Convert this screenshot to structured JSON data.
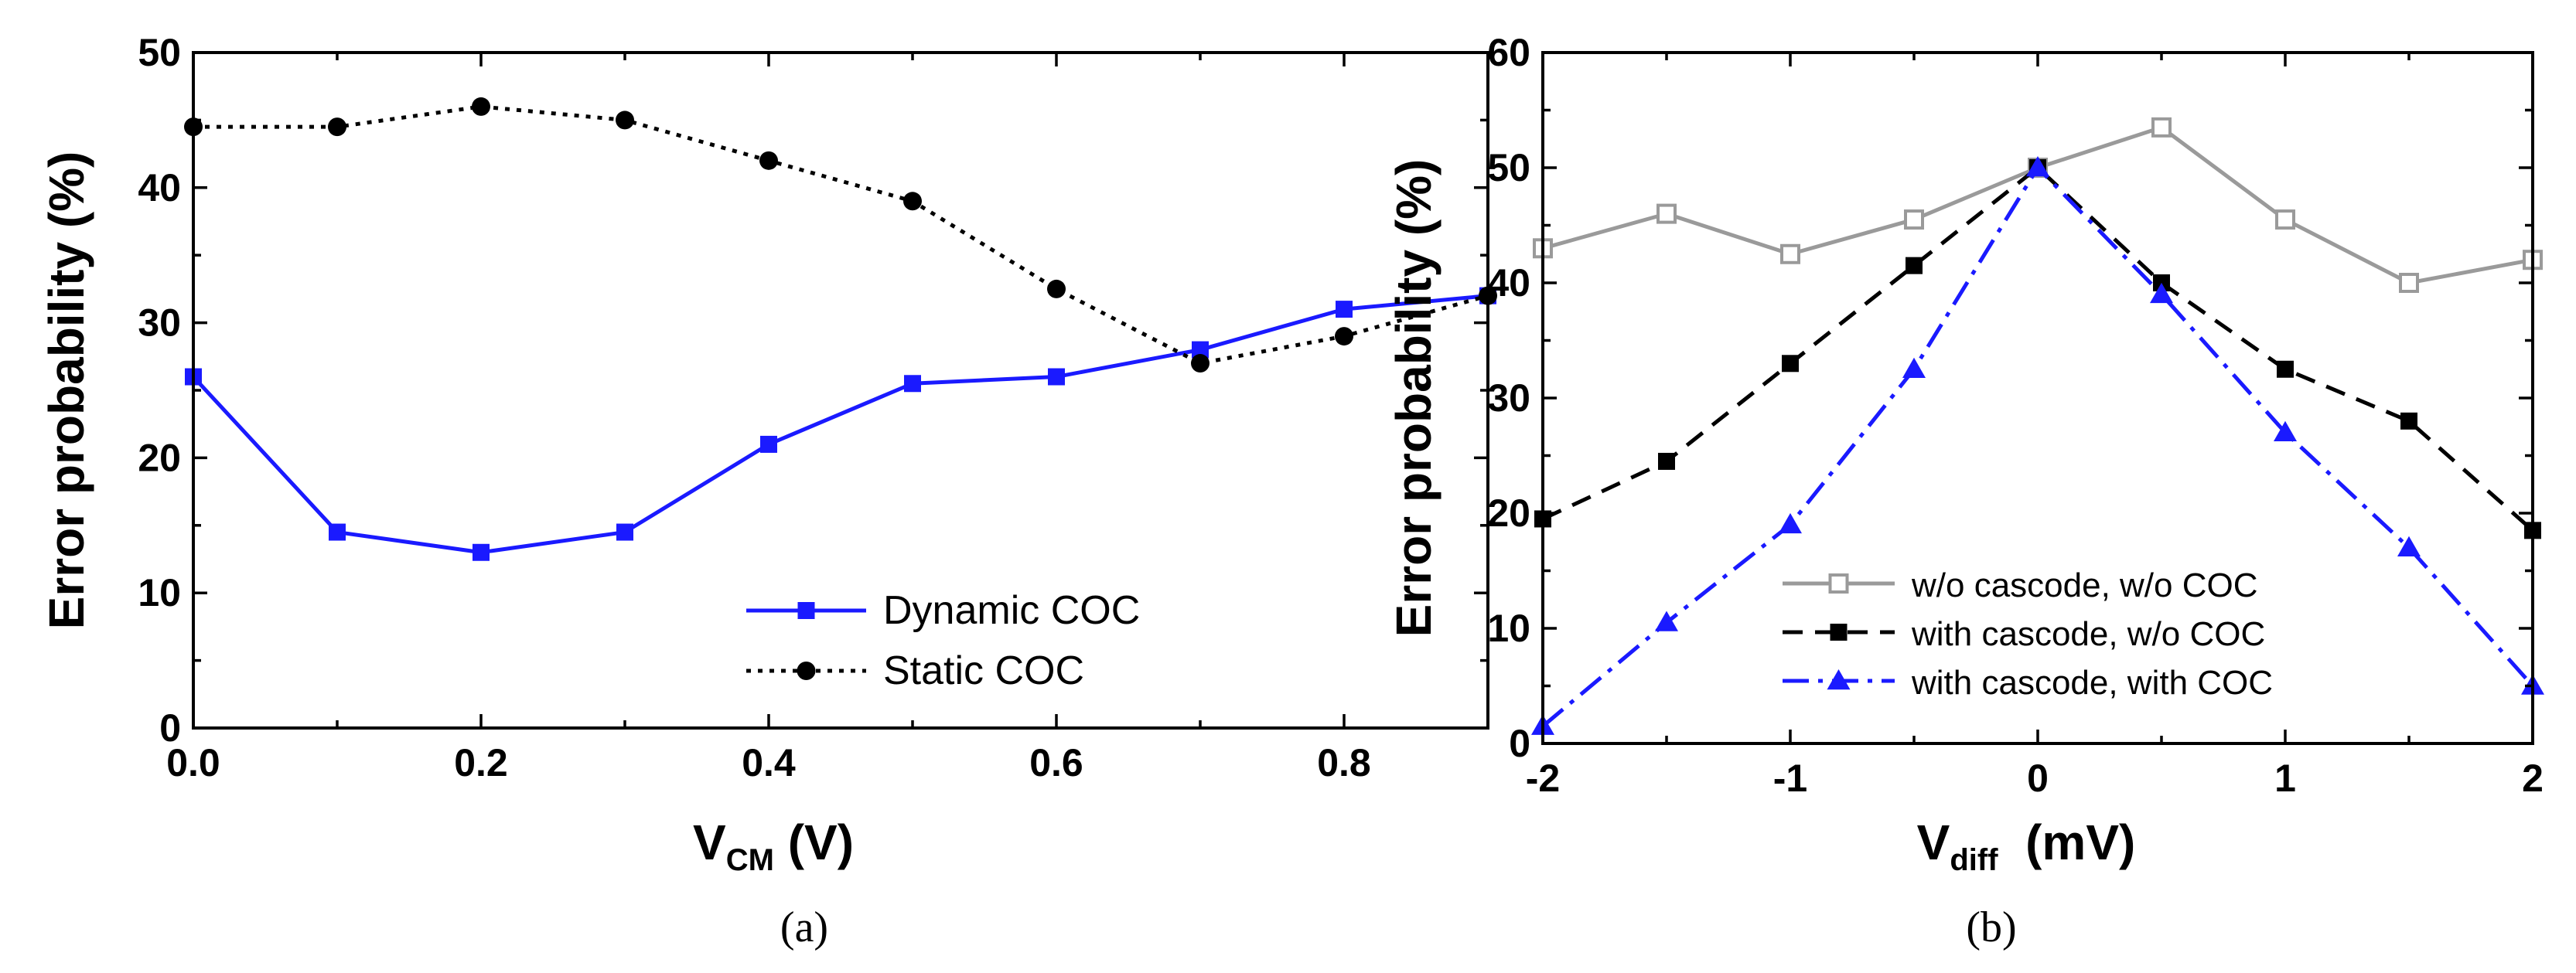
{
  "chart_data": [
    {
      "type": "line",
      "caption": "(a)",
      "xlabel_main": "V",
      "xlabel_sub": "CM",
      "xlabel_unit": " (V)",
      "ylabel": "Error probability (%)",
      "xlim": [
        0,
        0.9
      ],
      "ylim": [
        0,
        50
      ],
      "xticks": [
        0.0,
        0.2,
        0.4,
        0.6,
        0.8
      ],
      "xtick_labels": [
        "0.0",
        "0.2",
        "0.4",
        "0.6",
        "0.8"
      ],
      "yticks": [
        0,
        10,
        20,
        30,
        40,
        50
      ],
      "ytick_labels": [
        "0",
        "10",
        "20",
        "30",
        "40",
        "50"
      ],
      "legend_position": "lower-right",
      "series": [
        {
          "name": "Dynamic COC",
          "color": "#1a1aff",
          "dash": "solid",
          "marker": "square-filled",
          "x": [
            0.0,
            0.1,
            0.2,
            0.3,
            0.4,
            0.5,
            0.6,
            0.7,
            0.8,
            0.9
          ],
          "values": [
            26,
            14.5,
            13,
            14.5,
            21,
            25.5,
            26,
            28,
            31,
            32
          ]
        },
        {
          "name": "Static COC",
          "color": "#000000",
          "dash": "dotted",
          "marker": "circle-filled",
          "x": [
            0.0,
            0.1,
            0.2,
            0.3,
            0.4,
            0.5,
            0.6,
            0.7,
            0.8,
            0.9
          ],
          "values": [
            44.5,
            44.5,
            46,
            45,
            42,
            39,
            32.5,
            27,
            29,
            32
          ]
        }
      ]
    },
    {
      "type": "line",
      "caption": "(b)",
      "xlabel_main": "V",
      "xlabel_sub": "diff",
      "xlabel_unit": "  (mV)",
      "ylabel": "Error probability (%)",
      "xlim": [
        -2,
        2
      ],
      "ylim": [
        0,
        60
      ],
      "xticks": [
        -2,
        -1,
        0,
        1,
        2
      ],
      "xtick_labels": [
        "-2",
        "-1",
        "0",
        "1",
        "2"
      ],
      "yticks": [
        0,
        10,
        20,
        30,
        40,
        50,
        60
      ],
      "ytick_labels": [
        "0",
        "10",
        "20",
        "30",
        "40",
        "50",
        "60"
      ],
      "legend_position": "lower-center",
      "series": [
        {
          "name": "w/o cascode, w/o COC",
          "color": "#9a9a9a",
          "dash": "solid",
          "marker": "square-open",
          "x": [
            -2,
            -1.5,
            -1,
            -0.5,
            0,
            0.5,
            1,
            1.5,
            2
          ],
          "values": [
            43,
            46,
            42.5,
            45.5,
            50,
            53.5,
            45.5,
            40,
            42
          ]
        },
        {
          "name": "with cascode, w/o COC",
          "color": "#000000",
          "dash": "dashed",
          "marker": "square-filled",
          "x": [
            -2,
            -1.5,
            -1,
            -0.5,
            0,
            0.5,
            1,
            1.5,
            2
          ],
          "values": [
            19.5,
            24.5,
            33,
            41.5,
            50,
            40,
            32.5,
            28,
            18.5
          ]
        },
        {
          "name": "with cascode, with COC",
          "color": "#1a1aff",
          "dash": "dashdot",
          "marker": "triangle-filled",
          "x": [
            -2,
            -1.5,
            -1,
            -0.5,
            0,
            0.5,
            1,
            1.5,
            2
          ],
          "values": [
            1.5,
            10.5,
            19,
            32.5,
            50,
            39,
            27,
            17,
            5
          ]
        }
      ]
    }
  ]
}
